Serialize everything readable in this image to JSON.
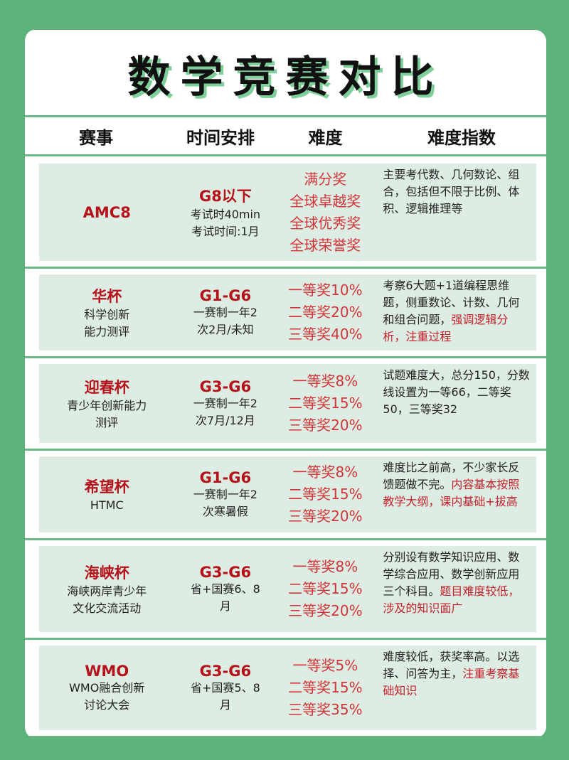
{
  "title": "数学竞赛对比",
  "headers": [
    "赛事",
    "时间安排",
    "难度",
    "难度指数"
  ],
  "colors": {
    "background": "#5db47a",
    "accent_red": "#b5121b",
    "panel": "#deede3"
  },
  "rows": [
    {
      "name": "AMC8",
      "name_sub": [],
      "grade": "G8以下",
      "schedule": [
        "考试时40min",
        "考试时间:1月"
      ],
      "awards": [
        "满分奖",
        "全球卓越奖",
        "全球优秀奖",
        "全球荣誉奖"
      ],
      "desc": [
        {
          "text": "主要考代数、几何数论、组合，包括但不限于比例、体积、逻辑推理等",
          "red": false
        }
      ]
    },
    {
      "name": "华杯",
      "name_sub": [
        "科学创新",
        "能力测评"
      ],
      "grade": "G1-G6",
      "schedule": [
        "一赛制一年2",
        "次2月/未知"
      ],
      "awards": [
        "一等奖10%",
        "二等奖20%",
        "三等奖40%"
      ],
      "desc": [
        {
          "text": "考察6大题+1道编程思维题，侧重数论、计数、几何和组合问题，",
          "red": false
        },
        {
          "text": "强调逻辑分析，注重过程",
          "red": true
        }
      ]
    },
    {
      "name": "迎春杯",
      "name_sub": [
        "青少年创新能力",
        "测评"
      ],
      "grade": "G3-G6",
      "schedule": [
        "一赛制一年2",
        "次7月/12月"
      ],
      "awards": [
        "一等奖8%",
        "二等奖15%",
        "三等奖20%"
      ],
      "desc": [
        {
          "text": "试题难度大，总分150，分数线设置为一等66，二等奖50，三等奖32",
          "red": false
        }
      ]
    },
    {
      "name": "希望杯",
      "name_sub": [
        "HTMC"
      ],
      "grade": "G1-G6",
      "schedule": [
        "一赛制一年2",
        "次寒暑假"
      ],
      "awards": [
        "一等奖8%",
        "二等奖15%",
        "三等奖20%"
      ],
      "desc": [
        {
          "text": "难度比之前高，不少家长反馈题做不完。",
          "red": false
        },
        {
          "text": "内容基本按照教学大纲，课内基础+拔高",
          "red": true
        }
      ]
    },
    {
      "name": "海峡杯",
      "name_sub": [
        "海峡两岸青少年",
        "文化交流活动"
      ],
      "grade": "G3-G6",
      "schedule": [
        "省+国赛6、8",
        "月"
      ],
      "awards": [
        "一等奖8%",
        "二等奖15%",
        "三等奖20%"
      ],
      "desc": [
        {
          "text": "分别设有数学知识应用、数学综合应用、数学创新应用三个科目。",
          "red": false
        },
        {
          "text": "题目难度较低，涉及的知识面广",
          "red": true
        }
      ]
    },
    {
      "name": "WMO",
      "name_sub": [
        "WMO融合创新",
        "讨论大会"
      ],
      "grade": "G3-G6",
      "schedule": [
        "省+国赛5、8",
        "月"
      ],
      "awards": [
        "一等奖5%",
        "二等奖15%",
        "三等奖35%"
      ],
      "desc": [
        {
          "text": "难度较低，获奖率高。以选择、问答为主，",
          "red": false
        },
        {
          "text": "注重考察基础知识",
          "red": true
        }
      ]
    }
  ]
}
